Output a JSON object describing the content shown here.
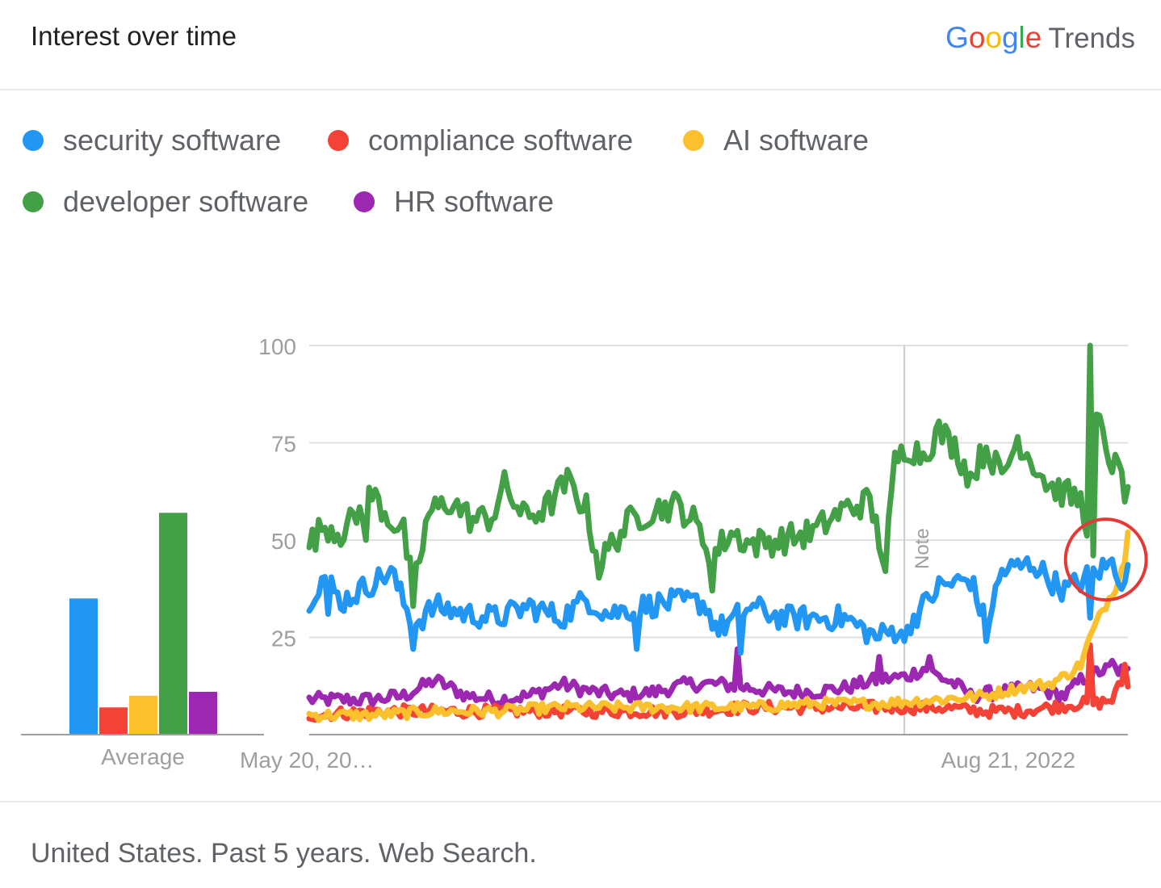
{
  "header": {
    "title": "Interest over time",
    "brand": {
      "google_letters": [
        "G",
        "o",
        "o",
        "g",
        "l",
        "e"
      ],
      "product": "Trends"
    }
  },
  "footer": {
    "text": "United States. Past 5 years. Web Search."
  },
  "chart_data": [
    {
      "type": "bar",
      "categories": [
        "security software",
        "compliance software",
        "AI software",
        "developer software",
        "HR software"
      ],
      "values": [
        35,
        7,
        10,
        57,
        11
      ],
      "xlabel": "Average",
      "ylim": [
        0,
        100
      ],
      "colors": [
        "#2196F3",
        "#F44336",
        "#FBC02D",
        "#43A047",
        "#9C27B0"
      ]
    },
    {
      "type": "line",
      "x": {
        "start": "2018-05-20",
        "weeks": 261,
        "tick_labels": [
          "May 20, 20…",
          "Aug 21, 2022"
        ],
        "tick_dates": [
          "2018-05-20",
          "2022-08-21"
        ]
      },
      "y_ticks": [
        25,
        50,
        75,
        100
      ],
      "ylim": [
        0,
        100
      ],
      "grid": true,
      "annotation": {
        "label": "Note",
        "date": "2022-01-02"
      },
      "highlight": {
        "shape": "circle",
        "color": "#E53935",
        "date": "2023-03-26",
        "value": 45
      },
      "series": [
        {
          "name": "security software",
          "color": "#2196F3",
          "keypoints": [
            [
              0,
              35
            ],
            [
              5,
              41
            ],
            [
              10,
              34
            ],
            [
              18,
              38
            ],
            [
              26,
              42
            ],
            [
              33,
              28
            ],
            [
              40,
              33
            ],
            [
              50,
              31
            ],
            [
              60,
              30
            ],
            [
              70,
              33
            ],
            [
              80,
              30
            ],
            [
              88,
              35
            ],
            [
              95,
              31
            ],
            [
              105,
              33
            ],
            [
              115,
              34
            ],
            [
              125,
              34
            ],
            [
              130,
              27
            ],
            [
              140,
              33
            ],
            [
              150,
              30
            ],
            [
              160,
              30
            ],
            [
              170,
              30
            ],
            [
              180,
              25
            ],
            [
              190,
              28
            ],
            [
              200,
              38
            ],
            [
              210,
              40
            ],
            [
              215,
              28
            ],
            [
              220,
              42
            ],
            [
              230,
              44
            ],
            [
              235,
              40
            ],
            [
              240,
              37
            ],
            [
              248,
              41
            ],
            [
              255,
              44
            ],
            [
              258,
              40
            ],
            [
              262,
              43
            ]
          ],
          "extremes": [
            [
              6,
              31
            ],
            [
              33,
              22
            ],
            [
              104,
              22
            ],
            [
              137,
              21
            ],
            [
              189,
              24
            ],
            [
              215,
              24
            ],
            [
              248,
              30
            ]
          ]
        },
        {
          "name": "compliance software",
          "color": "#F44336",
          "keypoints": [
            [
              0,
              5
            ],
            [
              20,
              6
            ],
            [
              40,
              6
            ],
            [
              60,
              6
            ],
            [
              80,
              6
            ],
            [
              100,
              6
            ],
            [
              120,
              6
            ],
            [
              140,
              7
            ],
            [
              160,
              7
            ],
            [
              180,
              7
            ],
            [
              200,
              7
            ],
            [
              215,
              6
            ],
            [
              225,
              6
            ],
            [
              235,
              7
            ],
            [
              245,
              8
            ],
            [
              250,
              8
            ],
            [
              255,
              9
            ],
            [
              259,
              15
            ],
            [
              262,
              10
            ]
          ],
          "extremes": [
            [
              248,
              23
            ],
            [
              259,
              18
            ],
            [
              262,
              9
            ]
          ]
        },
        {
          "name": "AI software",
          "color": "#FBC02D",
          "keypoints": [
            [
              0,
              5
            ],
            [
              20,
              5
            ],
            [
              40,
              6
            ],
            [
              60,
              6
            ],
            [
              80,
              7
            ],
            [
              100,
              7
            ],
            [
              120,
              7
            ],
            [
              140,
              7
            ],
            [
              160,
              8
            ],
            [
              180,
              8
            ],
            [
              200,
              9
            ],
            [
              215,
              10
            ],
            [
              225,
              12
            ],
            [
              235,
              13
            ],
            [
              240,
              15
            ],
            [
              245,
              18
            ],
            [
              248,
              25
            ],
            [
              252,
              32
            ],
            [
              256,
              38
            ],
            [
              259,
              45
            ],
            [
              260,
              50
            ],
            [
              262,
              47
            ]
          ],
          "extremes": [
            [
              260,
              52
            ]
          ]
        },
        {
          "name": "developer software",
          "color": "#43A047",
          "keypoints": [
            [
              0,
              49
            ],
            [
              5,
              54
            ],
            [
              10,
              52
            ],
            [
              15,
              56
            ],
            [
              20,
              62
            ],
            [
              25,
              56
            ],
            [
              30,
              52
            ],
            [
              33,
              37
            ],
            [
              38,
              57
            ],
            [
              45,
              60
            ],
            [
              52,
              55
            ],
            [
              58,
              56
            ],
            [
              62,
              64
            ],
            [
              68,
              56
            ],
            [
              75,
              58
            ],
            [
              82,
              65
            ],
            [
              88,
              58
            ],
            [
              92,
              43
            ],
            [
              96,
              49
            ],
            [
              102,
              55
            ],
            [
              110,
              58
            ],
            [
              117,
              59
            ],
            [
              122,
              55
            ],
            [
              128,
              46
            ],
            [
              134,
              52
            ],
            [
              140,
              49
            ],
            [
              150,
              50
            ],
            [
              160,
              52
            ],
            [
              170,
              58
            ],
            [
              178,
              60
            ],
            [
              183,
              44
            ],
            [
              186,
              70
            ],
            [
              190,
              74
            ],
            [
              195,
              72
            ],
            [
              200,
              78
            ],
            [
              205,
              74
            ],
            [
              210,
              66
            ],
            [
              215,
              74
            ],
            [
              220,
              66
            ],
            [
              225,
              76
            ],
            [
              230,
              70
            ],
            [
              235,
              64
            ],
            [
              240,
              62
            ],
            [
              245,
              60
            ],
            [
              248,
              52
            ],
            [
              250,
              82
            ],
            [
              252,
              76
            ],
            [
              255,
              70
            ],
            [
              258,
              66
            ],
            [
              260,
              60
            ],
            [
              262,
              70
            ]
          ],
          "extremes": [
            [
              18,
              50
            ],
            [
              33,
              33
            ],
            [
              128,
              37
            ],
            [
              183,
              42
            ],
            [
              248,
              100
            ],
            [
              249,
              46
            ]
          ]
        },
        {
          "name": "HR software",
          "color": "#9C27B0",
          "keypoints": [
            [
              0,
              9
            ],
            [
              20,
              9
            ],
            [
              30,
              10
            ],
            [
              40,
              14
            ],
            [
              50,
              10
            ],
            [
              60,
              9
            ],
            [
              70,
              10
            ],
            [
              80,
              13
            ],
            [
              90,
              11
            ],
            [
              100,
              10
            ],
            [
              110,
              11
            ],
            [
              120,
              13
            ],
            [
              130,
              13
            ],
            [
              140,
              12
            ],
            [
              150,
              11
            ],
            [
              160,
              11
            ],
            [
              170,
              12
            ],
            [
              180,
              14
            ],
            [
              190,
              15
            ],
            [
              195,
              17
            ],
            [
              200,
              15
            ],
            [
              205,
              13
            ],
            [
              210,
              10
            ],
            [
              220,
              11
            ],
            [
              230,
              12
            ],
            [
              240,
              10
            ],
            [
              245,
              14
            ],
            [
              250,
              16
            ],
            [
              255,
              17
            ],
            [
              260,
              16
            ],
            [
              262,
              11
            ]
          ],
          "extremes": [
            [
              136,
              22
            ],
            [
              181,
              20
            ],
            [
              197,
              20
            ],
            [
              248,
              12
            ],
            [
              255,
              19
            ]
          ]
        }
      ]
    }
  ]
}
